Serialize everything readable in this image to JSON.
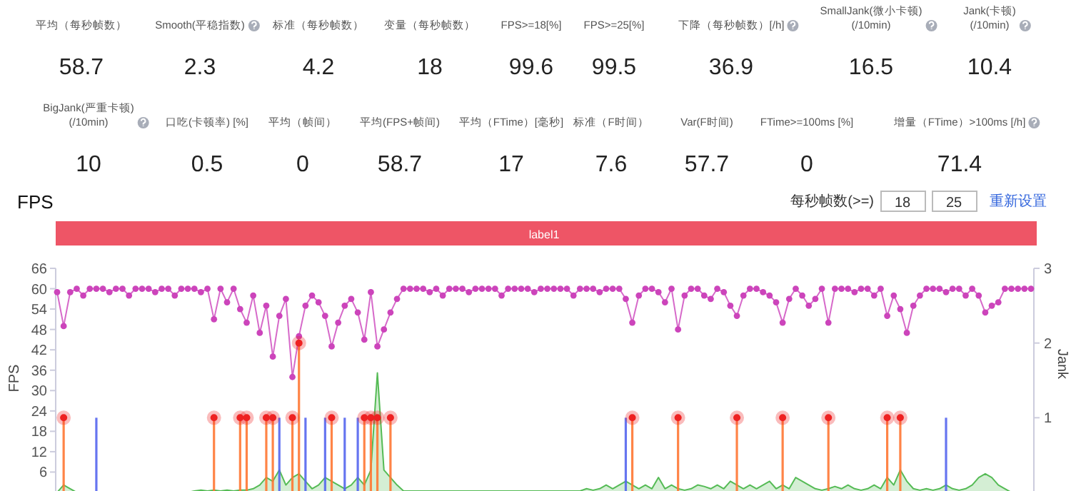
{
  "chart_data": [
    {
      "type": "other",
      "categories": [
        "平均（每秒帧数）",
        "Smooth(平稳指数)",
        "标准（每秒帧数）",
        "变量（每秒帧数）",
        "FPS>=18[%]",
        "FPS>=25[%]",
        "下降（每秒帧数）[/h]",
        "SmallJank(微小卡顿)\n(/10min)",
        "Jank(卡顿)\n(/10min)",
        "BigJank(严重卡顿)\n(/10min)",
        "口吃(卡顿率) [%]",
        "平均（帧间）",
        "平均(FPS+帧间)",
        "平均（FTime）[毫秒]",
        "标准（F时间）",
        "Var(F时间)",
        "FTime>=100ms [%]",
        "增量（FTime）>100ms [/h]"
      ],
      "values": [
        58.7,
        2.3,
        4.2,
        18,
        99.6,
        99.5,
        36.9,
        16.5,
        10.4,
        10,
        0.5,
        0,
        58.7,
        17,
        7.6,
        57.7,
        0,
        71.4
      ],
      "data_labels": true
    },
    {
      "type": "line",
      "title": "FPS",
      "ylabel": "FPS",
      "y2label": "Jank",
      "categories": [
        null,
        null,
        null,
        null,
        null,
        null,
        null,
        null,
        null,
        null,
        null,
        null,
        null,
        null,
        null,
        null,
        null,
        null,
        null,
        null,
        null,
        null,
        null,
        null,
        null,
        null,
        null,
        null,
        null,
        null,
        null,
        null,
        null,
        null,
        null,
        null,
        null,
        null,
        null,
        null,
        null,
        null,
        null,
        null,
        null,
        null,
        null,
        null,
        null,
        null,
        null,
        null,
        null,
        null,
        null,
        null,
        null,
        null,
        null,
        null,
        null,
        null,
        null,
        null,
        null,
        null,
        null,
        null,
        null,
        null,
        null,
        null,
        null,
        null,
        null,
        null,
        null,
        null,
        null,
        null,
        null,
        null,
        null,
        null,
        null,
        null,
        null,
        null,
        null,
        null,
        null,
        null,
        null,
        null,
        null,
        null,
        null,
        null,
        null,
        null,
        null,
        null,
        null,
        null,
        null,
        null,
        null,
        null,
        null,
        null,
        null,
        null,
        null,
        null,
        null,
        null,
        null,
        null,
        null,
        null,
        null,
        null,
        null,
        null,
        null,
        null,
        null,
        null,
        null,
        null,
        null,
        null,
        null,
        null,
        null,
        null,
        null,
        null,
        null,
        null,
        null,
        null,
        null,
        null,
        null,
        null,
        null,
        null,
        null,
        null
      ],
      "ylim": [
        0,
        66
      ],
      "yticks": [
        6,
        12,
        18,
        24,
        30,
        36,
        42,
        48,
        54,
        60,
        66
      ],
      "y2lim": [
        0,
        3
      ],
      "y2ticks": [
        1,
        2,
        3
      ],
      "grid": false,
      "annotations": [
        "每秒帧数(>=)",
        "18",
        "25",
        "重新设置",
        "label1"
      ],
      "series": [
        {
          "type": "area",
          "axis": "y2",
          "color": "#55bb55",
          "values": [
            0,
            0.1,
            0.05,
            0,
            0,
            0,
            0,
            0,
            0,
            0,
            0,
            0,
            0,
            0,
            0,
            0,
            0,
            0,
            0,
            0,
            0,
            0.02,
            0.03,
            0.02,
            0.03,
            0.02,
            0.03,
            0.02,
            0.03,
            0.03,
            0.05,
            0.1,
            0.2,
            0.15,
            0.3,
            0.1,
            0.2,
            0.25,
            0.15,
            0.05,
            0.1,
            0.2,
            0.15,
            0.1,
            0.05,
            0.1,
            0.2,
            0.1,
            0.3,
            1.6,
            0.3,
            0.2,
            0.1,
            0.02,
            0.02,
            0.02,
            0.02,
            0.02,
            0.02,
            0.02,
            0.02,
            0.02,
            0.02,
            0.02,
            0.02,
            0.02,
            0.02,
            0.02,
            0.02,
            0.02,
            0.02,
            0.02,
            0.02,
            0.02,
            0.02,
            0.02,
            0.02,
            0.02,
            0.02,
            0.02,
            0.02,
            0.05,
            0.03,
            0.05,
            0.1,
            0.05,
            0.1,
            0.15,
            0.1,
            0.05,
            0.1,
            0.05,
            0.2,
            0.05,
            0.1,
            0.05,
            0.03,
            0.05,
            0.1,
            0.08,
            0.05,
            0.1,
            0.05,
            0.15,
            0.1,
            0.05,
            0.1,
            0.05,
            0.1,
            0.15,
            0.05,
            0.1,
            0.05,
            0.2,
            0.15,
            0.1,
            0.05,
            0.03,
            0.05,
            0.08,
            0.05,
            0.1,
            0.05,
            0.03,
            0.05,
            0.1,
            0.05,
            0.2,
            0.1,
            0.3,
            0.15,
            0.05,
            0.03,
            0.05,
            0.03,
            0.05,
            0.1,
            0.05,
            0.03,
            0.05,
            0.1,
            0.2,
            0.25,
            0.2,
            0.1,
            0.05,
            0,
            0,
            0,
            0
          ]
        },
        {
          "type": "bar",
          "axis": "y2",
          "color": "#5566ee",
          "values": [
            0,
            0,
            0,
            0,
            0,
            0,
            1,
            0,
            0,
            0,
            0,
            0,
            0,
            0,
            0,
            0,
            0,
            0,
            0,
            0,
            0,
            0,
            0,
            0,
            0,
            0,
            0,
            0,
            0,
            0,
            0,
            0,
            0,
            0,
            1,
            0,
            0,
            0,
            1,
            0,
            0,
            1,
            0,
            0,
            1,
            0,
            1,
            0,
            0,
            0,
            0,
            0,
            0,
            0,
            0,
            0,
            0,
            0,
            0,
            0,
            0,
            0,
            0,
            0,
            0,
            0,
            0,
            0,
            0,
            0,
            0,
            0,
            0,
            0,
            0,
            0,
            0,
            0,
            0,
            0,
            0,
            0,
            0,
            0,
            0,
            0,
            0,
            1,
            0,
            0,
            0,
            0,
            0,
            0,
            0,
            0,
            0,
            0,
            0,
            0,
            0,
            0,
            0,
            0,
            0,
            0,
            0,
            0,
            0,
            0,
            0,
            0,
            0,
            0,
            0,
            0,
            0,
            0,
            0,
            0,
            0,
            0,
            0,
            0,
            0,
            0,
            0,
            0,
            0,
            0,
            0,
            0,
            0,
            0,
            0,
            0,
            1,
            0,
            0,
            0,
            0,
            0,
            0,
            0,
            0,
            0,
            0,
            0,
            0,
            0
          ]
        },
        {
          "type": "bar",
          "axis": "y2",
          "color": "#ff7733",
          "values": [
            0,
            1,
            0,
            0,
            0,
            0,
            0,
            0,
            0,
            0,
            0,
            0,
            0,
            0,
            0,
            0,
            0,
            0,
            0,
            0,
            0,
            0,
            0,
            0,
            1,
            0,
            0,
            0,
            1,
            1,
            0,
            0,
            1,
            1,
            0,
            0,
            1,
            2,
            0,
            0,
            0,
            0,
            1,
            0,
            0,
            0,
            0,
            1,
            1,
            1,
            0,
            1,
            0,
            0,
            0,
            0,
            0,
            0,
            0,
            0,
            0,
            0,
            0,
            0,
            0,
            0,
            0,
            0,
            0,
            0,
            0,
            0,
            0,
            0,
            0,
            0,
            0,
            0,
            0,
            0,
            0,
            0,
            0,
            0,
            0,
            0,
            0,
            0,
            1,
            0,
            0,
            0,
            0,
            0,
            0,
            1,
            0,
            0,
            0,
            0,
            0,
            0,
            0,
            0,
            1,
            0,
            0,
            0,
            0,
            0,
            0,
            1,
            0,
            0,
            0,
            0,
            0,
            0,
            1,
            0,
            0,
            0,
            0,
            0,
            0,
            0,
            0,
            1,
            0,
            1,
            0,
            0,
            0,
            0,
            0,
            0,
            0,
            0,
            0,
            0,
            0,
            0,
            0,
            0,
            0,
            0,
            0,
            0,
            0,
            0
          ]
        },
        {
          "type": "line",
          "marker": "circle",
          "color": "#cc44bb",
          "values": [
            59,
            49,
            59,
            60,
            58,
            60,
            60,
            60,
            59,
            60,
            60,
            58,
            60,
            60,
            60,
            59,
            60,
            60,
            58,
            60,
            60,
            60,
            59,
            60,
            51,
            60,
            56,
            60,
            54,
            50,
            58,
            47,
            55,
            40,
            52,
            57,
            34,
            46,
            55,
            58,
            56,
            52,
            43,
            50,
            55,
            57,
            53,
            45,
            59,
            43,
            48,
            53,
            57,
            60,
            60,
            60,
            60,
            59,
            60,
            58,
            60,
            60,
            60,
            59,
            60,
            60,
            60,
            60,
            58,
            60,
            60,
            60,
            60,
            59,
            60,
            60,
            60,
            60,
            60,
            58,
            60,
            60,
            60,
            59,
            60,
            60,
            60,
            57,
            50,
            58,
            60,
            60,
            59,
            56,
            60,
            48,
            58,
            60,
            60,
            58,
            57,
            60,
            59,
            55,
            52,
            58,
            60,
            60,
            59,
            58,
            56,
            50,
            57,
            60,
            58,
            55,
            57,
            60,
            50,
            60,
            60,
            60,
            59,
            60,
            60,
            58,
            60,
            52,
            58,
            54,
            47,
            55,
            58,
            60,
            60,
            60,
            59,
            60,
            60,
            58,
            60,
            58,
            53,
            55,
            56,
            60,
            60,
            60,
            60,
            60
          ]
        },
        {
          "type": "scatter",
          "axis": "y2",
          "color": "#ee2222",
          "values": [
            null,
            1,
            null,
            null,
            null,
            null,
            null,
            null,
            null,
            null,
            null,
            null,
            null,
            null,
            null,
            null,
            null,
            null,
            null,
            null,
            null,
            null,
            null,
            null,
            1,
            null,
            null,
            null,
            1,
            1,
            null,
            null,
            1,
            1,
            null,
            null,
            1,
            2,
            null,
            null,
            null,
            null,
            1,
            null,
            null,
            null,
            null,
            1,
            1,
            1,
            null,
            1,
            null,
            null,
            null,
            null,
            null,
            null,
            null,
            null,
            null,
            null,
            null,
            null,
            null,
            null,
            null,
            null,
            null,
            null,
            null,
            null,
            null,
            null,
            null,
            null,
            null,
            null,
            null,
            null,
            null,
            null,
            null,
            null,
            null,
            null,
            null,
            null,
            1,
            null,
            null,
            null,
            null,
            null,
            null,
            1,
            null,
            null,
            null,
            null,
            null,
            null,
            null,
            null,
            1,
            null,
            null,
            null,
            null,
            null,
            null,
            1,
            null,
            null,
            null,
            null,
            null,
            null,
            1,
            null,
            null,
            null,
            null,
            null,
            null,
            null,
            null,
            1,
            null,
            1,
            null,
            null,
            null,
            null,
            null,
            null,
            null,
            null,
            null,
            null,
            null,
            null,
            null,
            null,
            null,
            null,
            null,
            null,
            null,
            null
          ]
        }
      ]
    }
  ]
}
